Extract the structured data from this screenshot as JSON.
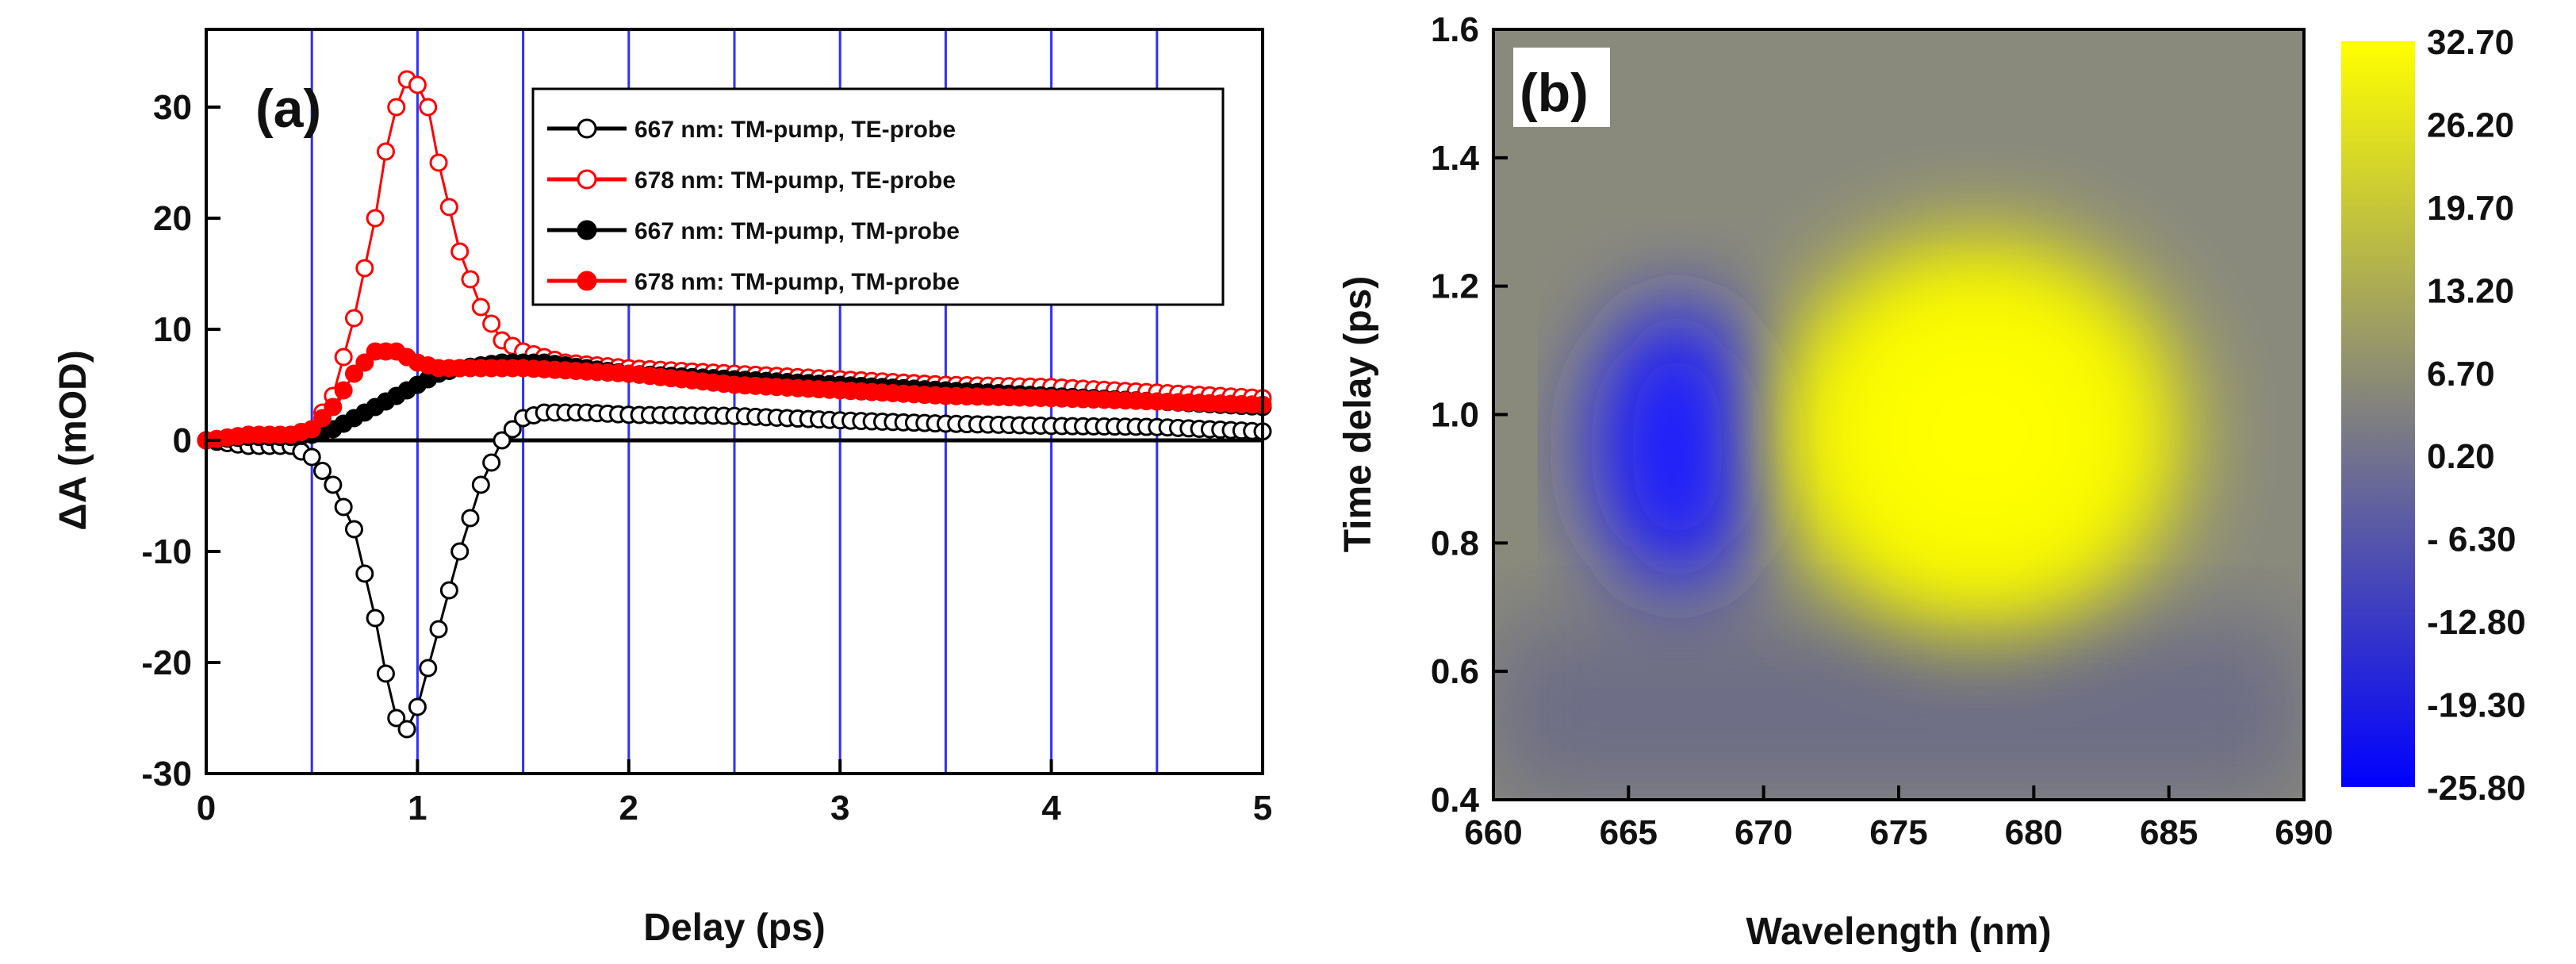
{
  "chart_data": [
    {
      "type": "scatter",
      "panel_label": "(a)",
      "xlabel": "Delay (ps)",
      "ylabel": "ΔA (mOD)",
      "xlim": [
        0,
        5
      ],
      "ylim": [
        -30,
        37
      ],
      "xticks": [
        "0",
        "1",
        "2",
        "3",
        "4",
        "5"
      ],
      "yticks": [
        "-30",
        "-20",
        "-10",
        "0",
        "10",
        "20",
        "30"
      ],
      "vertical_gridlines": [
        0.5,
        1,
        1.5,
        2,
        2.5,
        3,
        3.5,
        4,
        4.5
      ],
      "zero_line": true,
      "legend_position": "top-right",
      "series": [
        {
          "name": "667 nm: TM-pump, TE-probe",
          "color": "#000000",
          "marker": "open-circle",
          "points": [
            [
              0,
              0
            ],
            [
              0.2,
              -0.5
            ],
            [
              0.4,
              -0.5
            ],
            [
              0.5,
              -1.5
            ],
            [
              0.6,
              -4
            ],
            [
              0.7,
              -8
            ],
            [
              0.8,
              -16
            ],
            [
              0.85,
              -21
            ],
            [
              0.9,
              -25
            ],
            [
              0.95,
              -26
            ],
            [
              1.0,
              -24
            ],
            [
              1.1,
              -17
            ],
            [
              1.2,
              -10
            ],
            [
              1.3,
              -4
            ],
            [
              1.4,
              0
            ],
            [
              1.5,
              2
            ],
            [
              1.6,
              2.5
            ],
            [
              1.8,
              2.5
            ],
            [
              2.0,
              2.3
            ],
            [
              2.5,
              2.2
            ],
            [
              3.0,
              1.8
            ],
            [
              3.5,
              1.5
            ],
            [
              4.0,
              1.3
            ],
            [
              4.5,
              1.2
            ],
            [
              5.0,
              0.8
            ]
          ]
        },
        {
          "name": "678 nm: TM-pump, TE-probe",
          "color": "#ff0000",
          "marker": "open-circle",
          "points": [
            [
              0,
              0
            ],
            [
              0.2,
              0.5
            ],
            [
              0.4,
              0.5
            ],
            [
              0.5,
              1
            ],
            [
              0.6,
              4
            ],
            [
              0.7,
              11
            ],
            [
              0.8,
              20
            ],
            [
              0.85,
              26
            ],
            [
              0.9,
              30
            ],
            [
              0.95,
              32.5
            ],
            [
              1.0,
              32
            ],
            [
              1.05,
              30
            ],
            [
              1.1,
              25
            ],
            [
              1.2,
              17
            ],
            [
              1.3,
              12
            ],
            [
              1.4,
              9
            ],
            [
              1.5,
              8
            ],
            [
              1.7,
              7
            ],
            [
              2.0,
              6.5
            ],
            [
              2.5,
              6
            ],
            [
              3.0,
              5.5
            ],
            [
              3.5,
              5
            ],
            [
              4.0,
              4.8
            ],
            [
              4.5,
              4.3
            ],
            [
              5.0,
              3.8
            ]
          ]
        },
        {
          "name": "667 nm: TM-pump, TM-probe",
          "color": "#000000",
          "marker": "filled-circle",
          "points": [
            [
              0,
              0
            ],
            [
              0.2,
              0.3
            ],
            [
              0.4,
              0.3
            ],
            [
              0.5,
              0.5
            ],
            [
              0.6,
              1
            ],
            [
              0.7,
              2
            ],
            [
              0.8,
              3
            ],
            [
              0.9,
              4
            ],
            [
              1.0,
              5
            ],
            [
              1.1,
              6
            ],
            [
              1.2,
              6.5
            ],
            [
              1.4,
              7
            ],
            [
              1.6,
              7
            ],
            [
              1.8,
              6.5
            ],
            [
              2.0,
              6
            ],
            [
              2.5,
              5.5
            ],
            [
              3.0,
              5
            ],
            [
              3.5,
              4.5
            ],
            [
              4.0,
              4
            ],
            [
              4.5,
              3.5
            ],
            [
              5.0,
              3
            ]
          ]
        },
        {
          "name": "678 nm: TM-pump, TM-probe",
          "color": "#ff0000",
          "marker": "filled-circle",
          "points": [
            [
              0,
              0
            ],
            [
              0.2,
              0.5
            ],
            [
              0.4,
              0.5
            ],
            [
              0.5,
              1
            ],
            [
              0.6,
              3
            ],
            [
              0.7,
              6
            ],
            [
              0.8,
              8
            ],
            [
              0.9,
              8
            ],
            [
              1.0,
              7
            ],
            [
              1.1,
              6.5
            ],
            [
              1.2,
              6.5
            ],
            [
              1.5,
              6.5
            ],
            [
              2.0,
              6
            ],
            [
              2.5,
              5
            ],
            [
              3.0,
              4.5
            ],
            [
              3.5,
              4
            ],
            [
              4.0,
              3.8
            ],
            [
              4.5,
              3.5
            ],
            [
              5.0,
              3.2
            ]
          ]
        }
      ]
    },
    {
      "type": "heatmap",
      "panel_label": "(b)",
      "xlabel": "Wavelength (nm)",
      "ylabel": "Time delay (ps)",
      "xlim": [
        660,
        690
      ],
      "ylim": [
        0.4,
        1.6
      ],
      "xticks": [
        "660",
        "665",
        "670",
        "675",
        "680",
        "685",
        "690"
      ],
      "yticks": [
        "0.4",
        "0.6",
        "0.8",
        "1.0",
        "1.2",
        "1.4",
        "1.6"
      ],
      "colorbar": {
        "range": [
          -25.8,
          32.7
        ],
        "labels": [
          "32.70",
          "26.20",
          "19.70",
          "13.20",
          "6.70",
          "0.20",
          "- 6.30",
          "-12.80",
          "-19.30",
          "-25.80"
        ],
        "colors": [
          "#0000ff",
          "#808080",
          "#ffff00"
        ]
      },
      "features": [
        {
          "kind": "minimum",
          "wavelength_nm": 666.8,
          "delay_ps": 0.95,
          "value": -25.8
        },
        {
          "kind": "maximum",
          "wavelength_nm": 678,
          "delay_ps": 0.97,
          "value": 32.7
        }
      ]
    }
  ]
}
